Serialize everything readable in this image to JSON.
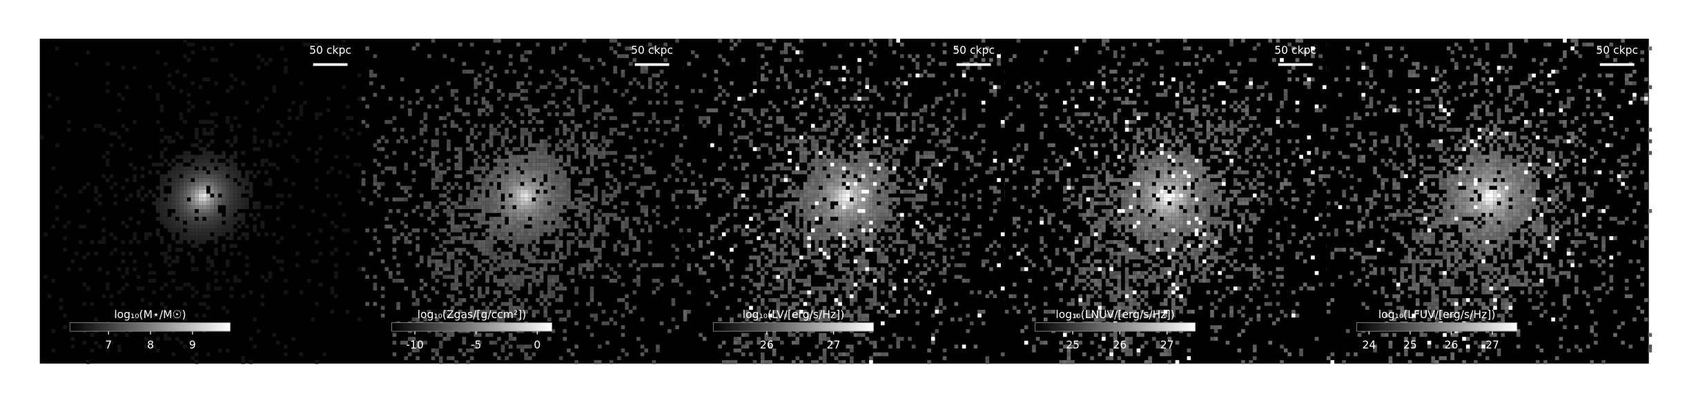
{
  "chart_data": [
    {
      "type": "image",
      "scale_label": "50 ckpc",
      "colorbar_label": "log₁₀(M⋆/M☉)",
      "xlim": [
        6.08,
        9.9
      ],
      "xticks": [
        7,
        8,
        9
      ]
    },
    {
      "type": "image",
      "scale_label": "50 ckpc",
      "colorbar_label": "log₁₀(Zgas/[g/ccm²])",
      "xlim": [
        -11.9,
        1.2
      ],
      "xticks": [
        -10,
        -5,
        0
      ]
    },
    {
      "type": "image",
      "scale_label": "50 ckpc",
      "colorbar_label": "log₁₀(LV/[erg/s/Hz])",
      "xlim": [
        25.2,
        27.6
      ],
      "xticks": [
        26,
        27
      ]
    },
    {
      "type": "image",
      "scale_label": "50 ckpc",
      "colorbar_label": "log₁₀(LNUV/[erg/s/Hz])",
      "xlim": [
        24.2,
        27.6
      ],
      "xticks": [
        25,
        26,
        27
      ]
    },
    {
      "type": "image",
      "scale_label": "50 ckpc",
      "colorbar_label": "log₁₀(LFUV/[erg/s/Hz])",
      "xlim": [
        23.7,
        27.6
      ],
      "xticks": [
        24,
        25,
        26,
        27
      ]
    }
  ]
}
